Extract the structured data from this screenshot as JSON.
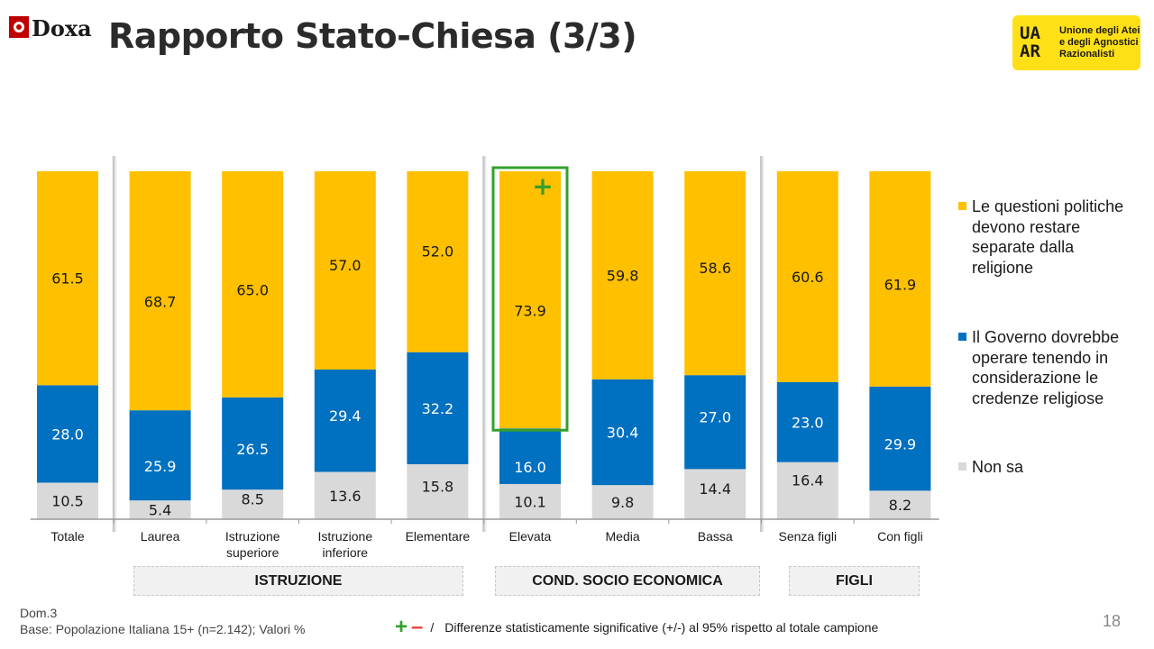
{
  "header": {
    "title": "Rapporto Stato-Chiesa (3/3)",
    "doxa_logo_text": "Doxa",
    "uaar_logo_lines": [
      "Unione degli Atei",
      "e degli Agnostici",
      "Razionalisti"
    ]
  },
  "chart_data": {
    "type": "bar",
    "stacked": true,
    "percent_scale": [
      0,
      100
    ],
    "categories": [
      "Totale",
      "Laurea",
      "Istruzione superiore",
      "Istruzione inferiore",
      "Elementare",
      "Elevata",
      "Media",
      "Bassa",
      "Senza figli",
      "Con figli"
    ],
    "category_lines": [
      [
        "Totale"
      ],
      [
        "Laurea"
      ],
      [
        "Istruzione",
        "superiore"
      ],
      [
        "Istruzione",
        "inferiore"
      ],
      [
        "Elementare"
      ],
      [
        "Elevata"
      ],
      [
        "Media"
      ],
      [
        "Bassa"
      ],
      [
        "Senza figli"
      ],
      [
        "Con figli"
      ]
    ],
    "series": [
      {
        "name": "Non sa",
        "color": "#d9d9d9",
        "values": [
          10.5,
          5.4,
          8.5,
          13.6,
          15.8,
          10.1,
          9.8,
          14.4,
          16.4,
          8.2
        ]
      },
      {
        "name": "Il Governo dovrebbe operare tenendo in considerazione le credenze religiose",
        "color": "#0070c0",
        "values": [
          28.0,
          25.9,
          26.5,
          29.4,
          32.2,
          16.0,
          30.4,
          27.0,
          23.0,
          29.9
        ]
      },
      {
        "name": "Le questioni politiche devono restare separate dalla religione",
        "color": "#ffc000",
        "values": [
          61.5,
          68.7,
          65.0,
          57.0,
          52.0,
          73.9,
          59.8,
          58.6,
          60.6,
          61.9
        ]
      }
    ],
    "legend": {
      "position": "right"
    },
    "highlight": {
      "category": "Elevata",
      "series": "Le questioni politiche devono restare separate dalla religione",
      "marker": "+",
      "color": "#33a02c"
    }
  },
  "groups": [
    {
      "label": "ISTRUZIONE"
    },
    {
      "label": "COND. SOCIO ECONOMICA"
    },
    {
      "label": "FIGLI"
    }
  ],
  "footer": {
    "question": "Dom.3",
    "base": "Base: Popolazione Italiana 15+ (n=2.142); Valori %",
    "plus_sign": "+",
    "minus_sign": "–",
    "slash": "/",
    "significance": "Differenze statisticamente significative (+/-) al 95% rispetto al totale campione",
    "page_number": "18"
  }
}
